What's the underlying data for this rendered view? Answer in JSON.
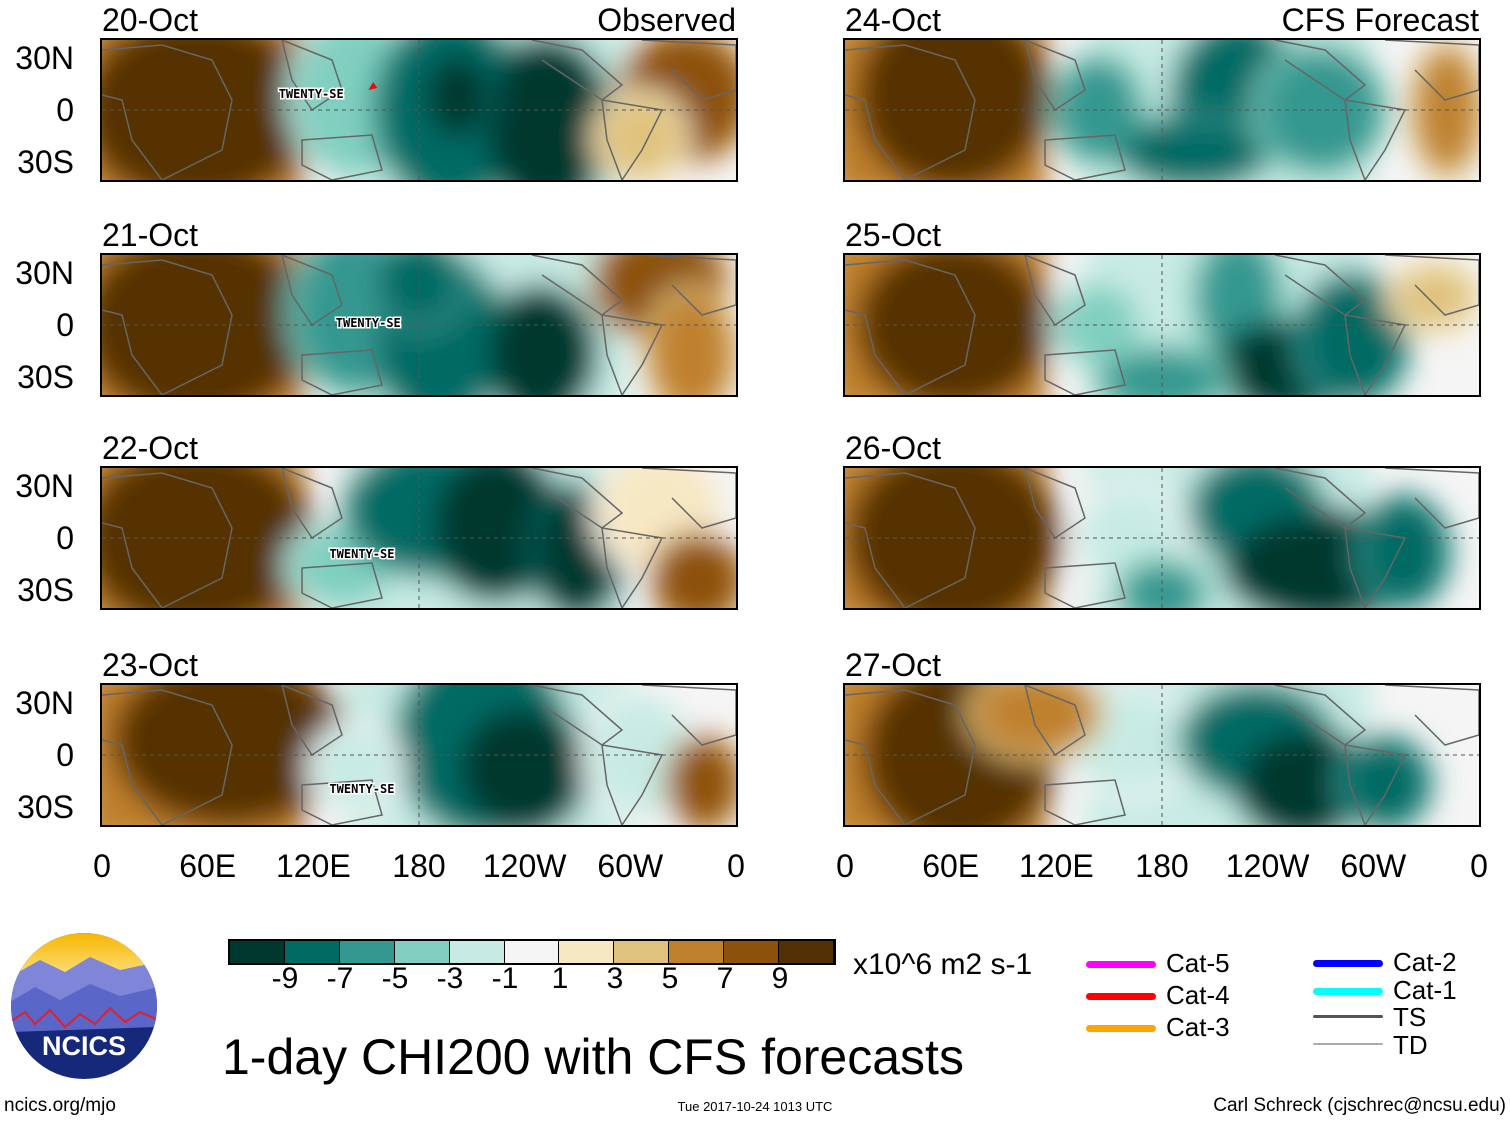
{
  "titles": {
    "observed": "Observed",
    "forecast": "CFS Forecast"
  },
  "observed_dates": [
    "20-Oct",
    "21-Oct",
    "22-Oct",
    "23-Oct"
  ],
  "forecast_dates": [
    "24-Oct",
    "25-Oct",
    "26-Oct",
    "27-Oct"
  ],
  "lat_labels": [
    "30N",
    "0",
    "30S"
  ],
  "lon_labels": [
    "0",
    "60E",
    "120E",
    "180",
    "120W",
    "60W",
    "0"
  ],
  "storm_labels": [
    "TWENTY-SE",
    "TWENTY-SE",
    "TWENTY-SE",
    "TWENTY-SE"
  ],
  "colorbar": {
    "colors": [
      "#00382f",
      "#006a63",
      "#349890",
      "#80cfc0",
      "#c7ebe4",
      "#f5f5f5",
      "#f6e8c3",
      "#dfc27d",
      "#bf812d",
      "#8c510a",
      "#543005"
    ],
    "labels": [
      "-9",
      "-7",
      "-5",
      "-3",
      "-1",
      "1",
      "3",
      "5",
      "7",
      "9"
    ],
    "units": "x10^6 m2 s-1"
  },
  "main_title": "1-day CHI200 with CFS forecasts",
  "legend": [
    {
      "label": "Cat-5",
      "color": "#ff00ff"
    },
    {
      "label": "Cat-4",
      "color": "#ff0000"
    },
    {
      "label": "Cat-3",
      "color": "#ffa500"
    },
    {
      "label": "Cat-2",
      "color": "#0000ff"
    },
    {
      "label": "Cat-1",
      "color": "#00ffff"
    },
    {
      "label": "TS",
      "color": "#555555"
    },
    {
      "label": "TD",
      "color": "#aaaaaa"
    }
  ],
  "logo_text": "NCICS",
  "footer": {
    "url": "ncics.org/mjo",
    "timestamp": "Tue 2017-10-24 1013 UTC",
    "author": "Carl Schreck (cjschrec@ncsu.edu)"
  }
}
